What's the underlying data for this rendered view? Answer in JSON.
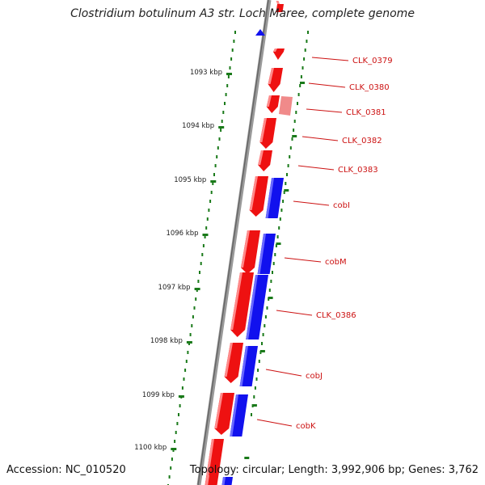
{
  "title": "Clostridium botulinum A3 str. Loch Maree, complete genome",
  "accession": "Accession: NC_010520",
  "summary": "Topology: circular; Length: 3,992,906 bp; Genes: 3,762",
  "colors": {
    "forward_strand": "#ee1111",
    "reverse_strand": "#1111ee",
    "tick": "#1a7a1a",
    "backbone": "#888888",
    "label": "#cc1111"
  },
  "ruler": [
    "1093 kbp",
    "1094 kbp",
    "1095 kbp",
    "1096 kbp",
    "1097 kbp",
    "1098 kbp",
    "1099 kbp",
    "1100 kbp"
  ],
  "genes": [
    "CLK_0379",
    "CLK_0380",
    "CLK_0381",
    "CLK_0382",
    "CLK_0383",
    "cobI",
    "cobM",
    "CLK_0386",
    "cobJ",
    "cobK"
  ]
}
